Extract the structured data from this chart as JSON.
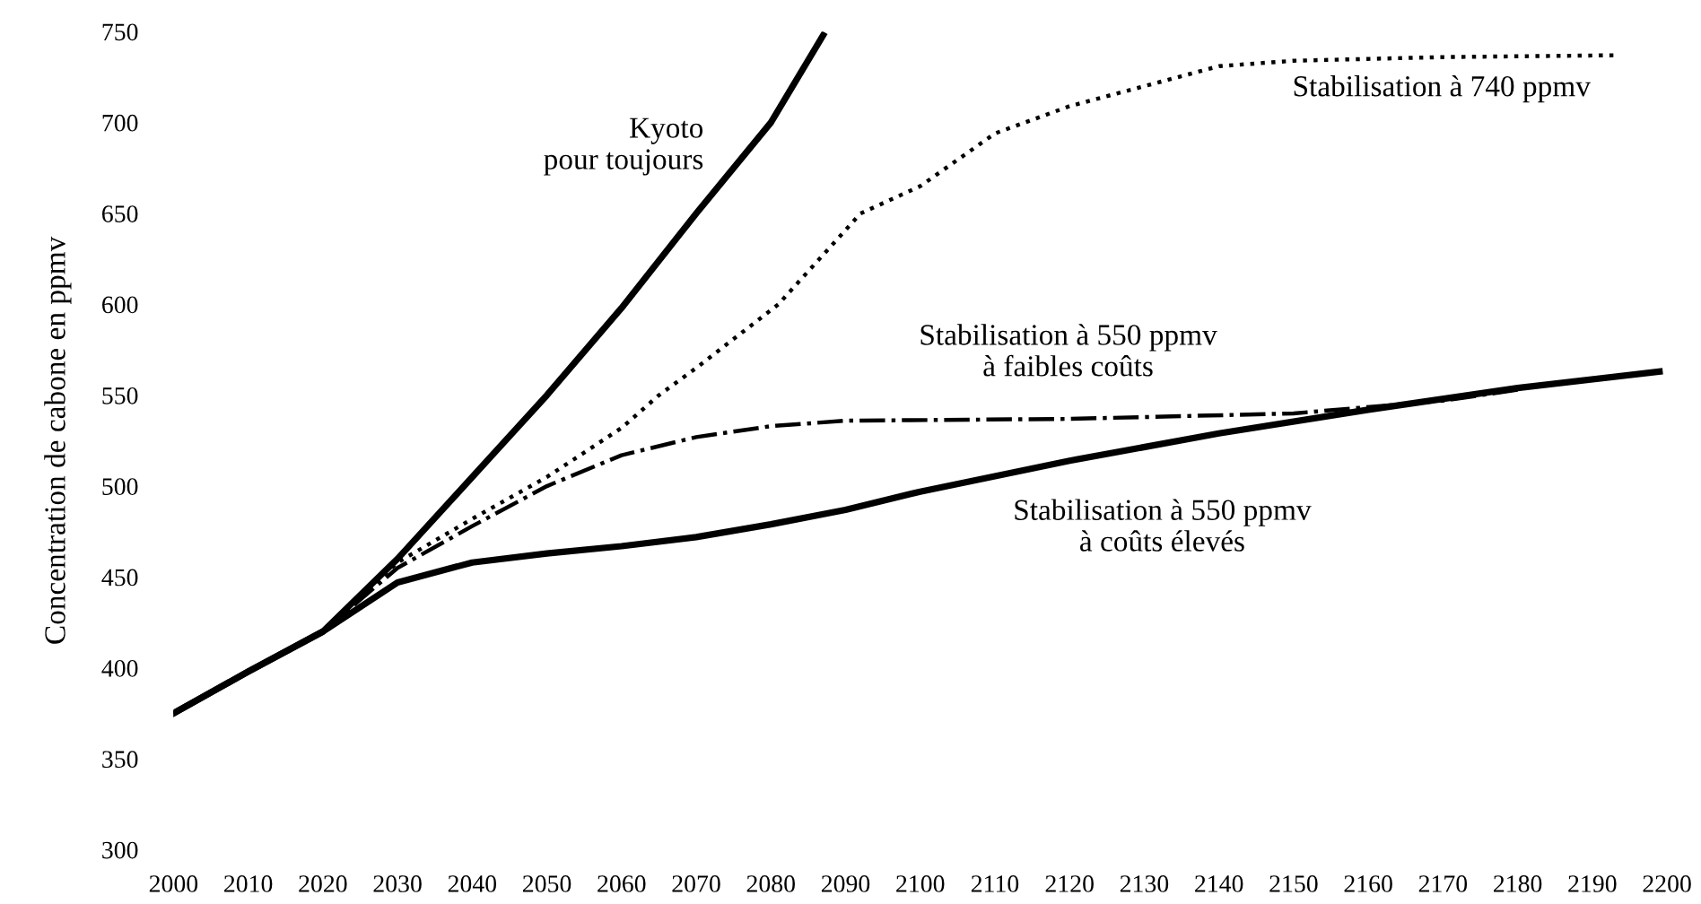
{
  "chart_data": {
    "type": "line",
    "ylabel": "Concentration de cabone en ppmv",
    "xlim": [
      2000,
      2200
    ],
    "xticks": [
      2000,
      2010,
      2020,
      2030,
      2040,
      2050,
      2060,
      2070,
      2080,
      2090,
      2100,
      2110,
      2120,
      2130,
      2140,
      2150,
      2160,
      2170,
      2180,
      2190,
      2200
    ],
    "ylim": [
      300,
      750
    ],
    "yticks": [
      300,
      350,
      400,
      450,
      500,
      550,
      600,
      650,
      700,
      750
    ],
    "grid": false,
    "legend": false,
    "series": [
      {
        "name": "Kyoto\npour toujours",
        "color": "#000000",
        "line_style": "solid",
        "x": [
          2000,
          2010,
          2020,
          2030,
          2040,
          2050,
          2060,
          2070,
          2080,
          2087
        ],
        "values": [
          375,
          398,
          420,
          460,
          505,
          550,
          598,
          650,
          700,
          748
        ]
      },
      {
        "name": "Stabilisation à 740 ppmv",
        "color": "#000000",
        "line_style": "dotted",
        "x": [
          2000,
          2010,
          2020,
          2030,
          2040,
          2050,
          2060,
          2065,
          2070,
          2081,
          2092,
          2100,
          2110,
          2120,
          2130,
          2140,
          2150,
          2170,
          2193
        ],
        "values": [
          375,
          398,
          420,
          458,
          482,
          505,
          532,
          550,
          565,
          600,
          650,
          665,
          694,
          709,
          720,
          731,
          734,
          736,
          737
        ]
      },
      {
        "name": "Stabilisation à 550 ppmv\nà faibles coûts",
        "color": "#000000",
        "line_style": "dashdot",
        "x": [
          2000,
          2010,
          2020,
          2030,
          2040,
          2050,
          2060,
          2070,
          2080,
          2090,
          2120,
          2150,
          2170,
          2180
        ],
        "values": [
          375,
          398,
          420,
          455,
          478,
          500,
          517,
          527,
          533,
          536,
          537,
          540,
          547,
          553
        ]
      },
      {
        "name": "Stabilisation à 550 ppmv\nà coûts élevés",
        "color": "#000000",
        "line_style": "solid",
        "x": [
          2000,
          2010,
          2020,
          2030,
          2040,
          2050,
          2060,
          2070,
          2080,
          2090,
          2100,
          2120,
          2140,
          2160,
          2180,
          2199
        ],
        "values": [
          375,
          398,
          420,
          447,
          458,
          463,
          467,
          472,
          479,
          487,
          497,
          514,
          529,
          542,
          554,
          563
        ]
      }
    ]
  }
}
